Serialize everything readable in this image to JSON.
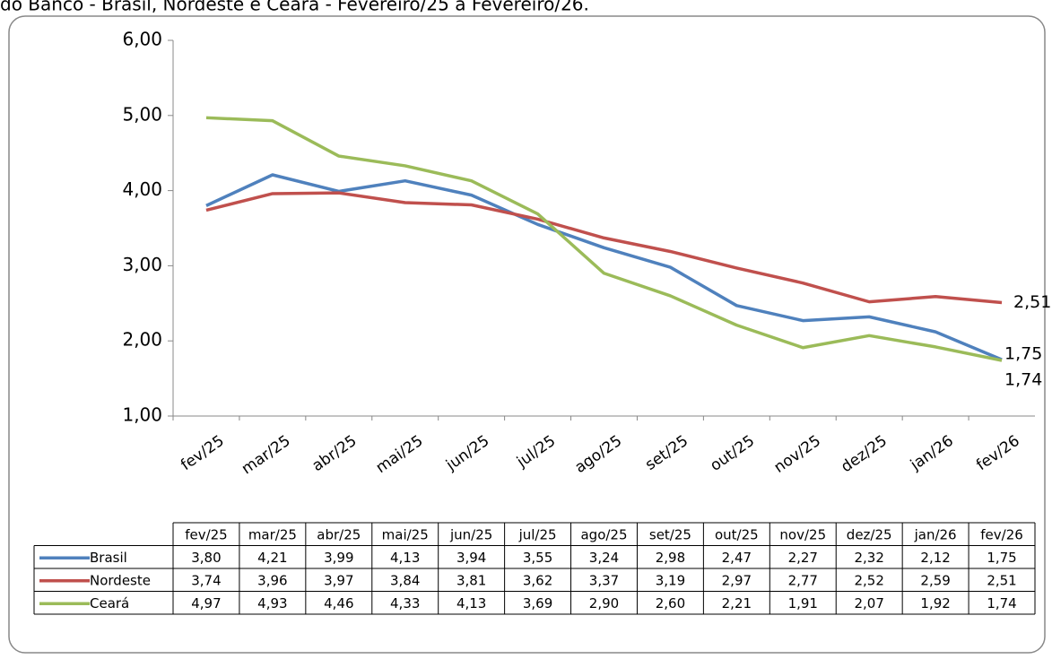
{
  "chart_data": {
    "type": "line",
    "title": "do Banco - Brasil, Nordeste e Ceará - Fevereiro/25 a Fevereiro/26.",
    "categories": [
      "fev/25",
      "mar/25",
      "abr/25",
      "mai/25",
      "jun/25",
      "jul/25",
      "ago/25",
      "set/25",
      "out/25",
      "nov/25",
      "dez/25",
      "jan/26",
      "fev/26"
    ],
    "series": [
      {
        "name": "Brasil",
        "color": "#4f81bd",
        "values": [
          3.8,
          4.21,
          3.99,
          4.13,
          3.94,
          3.55,
          3.24,
          2.98,
          2.47,
          2.27,
          2.32,
          2.12,
          1.75
        ],
        "value_labels": [
          "3,80",
          "4,21",
          "3,99",
          "4,13",
          "3,94",
          "3,55",
          "3,24",
          "2,98",
          "2,47",
          "2,27",
          "2,32",
          "2,12",
          "1,75"
        ]
      },
      {
        "name": "Nordeste",
        "color": "#c0504d",
        "values": [
          3.74,
          3.96,
          3.97,
          3.84,
          3.81,
          3.62,
          3.37,
          3.19,
          2.97,
          2.77,
          2.52,
          2.59,
          2.51
        ],
        "value_labels": [
          "3,74",
          "3,96",
          "3,97",
          "3,84",
          "3,81",
          "3,62",
          "3,37",
          "3,19",
          "2,97",
          "2,77",
          "2,52",
          "2,59",
          "2,51"
        ]
      },
      {
        "name": "Ceará",
        "color": "#9bbb59",
        "values": [
          4.97,
          4.93,
          4.46,
          4.33,
          4.13,
          3.69,
          2.9,
          2.6,
          2.21,
          1.91,
          2.07,
          1.92,
          1.74
        ],
        "value_labels": [
          "4,97",
          "4,93",
          "4,46",
          "4,33",
          "4,13",
          "3,69",
          "2,90",
          "2,60",
          "2,21",
          "1,91",
          "2,07",
          "1,92",
          "1,74"
        ]
      }
    ],
    "ylim": [
      1,
      6
    ],
    "yticks": [
      {
        "value": 1,
        "label": "1,00"
      },
      {
        "value": 2,
        "label": "2,00"
      },
      {
        "value": 3,
        "label": "3,00"
      },
      {
        "value": 4,
        "label": "4,00"
      },
      {
        "value": 5,
        "label": "5,00"
      },
      {
        "value": 6,
        "label": "6,00"
      }
    ]
  }
}
